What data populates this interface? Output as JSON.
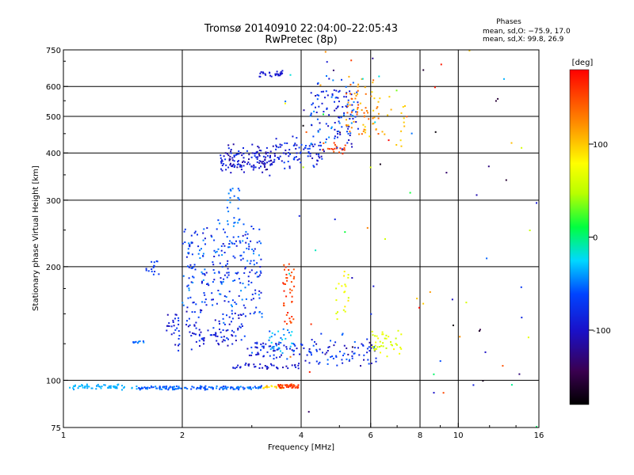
{
  "chart_data": {
    "type": "scatter",
    "title": "Tromsø 20140910 22:04:00–22:05:43",
    "subtitle": "RwPretec (8p)",
    "stats": {
      "heading": "Phases",
      "line_o": "mean, sd,O: −75.9, 17.0",
      "line_x": "mean, sd,X:  99.8, 26.9"
    },
    "xlabel": "Frequency [MHz]",
    "ylabel": "Stationary phase Virtual Height [km]",
    "x_scale": "log",
    "y_scale": "log",
    "xlim": [
      1,
      16
    ],
    "ylim": [
      75,
      750
    ],
    "x_ticks": [
      {
        "v": 1,
        "label": "1"
      },
      {
        "v": 2,
        "label": "2"
      },
      {
        "v": 4,
        "label": "4"
      },
      {
        "v": 6,
        "label": "6"
      },
      {
        "v": 8,
        "label": "8"
      },
      {
        "v": 10,
        "label": "10"
      },
      {
        "v": 16,
        "label": "16"
      }
    ],
    "x_grid": [
      2,
      4,
      6,
      8,
      10
    ],
    "y_ticks": [
      {
        "v": 75,
        "label": "75"
      },
      {
        "v": 100,
        "label": "100"
      },
      {
        "v": 200,
        "label": "200"
      },
      {
        "v": 300,
        "label": "300"
      },
      {
        "v": 400,
        "label": "400"
      },
      {
        "v": 500,
        "label": "500"
      },
      {
        "v": 600,
        "label": "600"
      },
      {
        "v": 750,
        "label": "750"
      }
    ],
    "y_grid": [
      100,
      200,
      300,
      400,
      500,
      600
    ],
    "grid": true,
    "colorbar": {
      "label": "[deg]",
      "range": [
        -180,
        180
      ],
      "ticks": [
        {
          "v": 100,
          "label": "100"
        },
        {
          "v": 0,
          "label": "0"
        },
        {
          "v": -100,
          "label": "-100"
        }
      ]
    },
    "clusters": [
      {
        "f0": 1.02,
        "f1": 1.55,
        "h0": 95,
        "h1": 97,
        "n": 60,
        "p0": -40,
        "p1": -30,
        "jh": 0.01
      },
      {
        "f0": 1.55,
        "f1": 3.2,
        "h0": 95,
        "h1": 96,
        "n": 140,
        "p0": -70,
        "p1": -40,
        "jh": 0.008
      },
      {
        "f0": 3.2,
        "f1": 3.6,
        "h0": 96,
        "h1": 96,
        "n": 20,
        "p0": 80,
        "p1": 120,
        "jh": 0.01
      },
      {
        "f0": 3.5,
        "f1": 3.95,
        "h0": 96,
        "h1": 97,
        "n": 40,
        "p0": 140,
        "p1": 170,
        "jh": 0.01
      },
      {
        "f0": 2.6,
        "f1": 4.0,
        "h0": 108,
        "h1": 110,
        "n": 40,
        "p0": -110,
        "p1": -80,
        "jh": 0.01
      },
      {
        "f0": 1.8,
        "f1": 2.9,
        "h0": 125,
        "h1": 150,
        "n": 120,
        "p0": -110,
        "p1": -60,
        "jh": 0.05
      },
      {
        "f0": 2.0,
        "f1": 3.2,
        "h0": 150,
        "h1": 250,
        "n": 250,
        "p0": -100,
        "p1": -40,
        "jh": 0.08
      },
      {
        "f0": 2.6,
        "f1": 2.8,
        "h0": 250,
        "h1": 320,
        "n": 25,
        "p0": -60,
        "p1": -40,
        "jh": 0.03
      },
      {
        "f0": 1.62,
        "f1": 1.75,
        "h0": 190,
        "h1": 210,
        "n": 15,
        "p0": -80,
        "p1": -60,
        "jh": 0.03
      },
      {
        "f0": 1.5,
        "f1": 1.6,
        "h0": 125,
        "h1": 128,
        "n": 10,
        "p0": -60,
        "p1": -40,
        "jh": 0.01
      },
      {
        "f0": 2.9,
        "f1": 4.1,
        "h0": 115,
        "h1": 125,
        "n": 60,
        "p0": -110,
        "p1": -50,
        "jh": 0.02
      },
      {
        "f0": 3.3,
        "f1": 3.85,
        "h0": 120,
        "h1": 135,
        "n": 30,
        "p0": -60,
        "p1": -20,
        "jh": 0.03
      },
      {
        "f0": 3.6,
        "f1": 3.85,
        "h0": 140,
        "h1": 200,
        "n": 40,
        "p0": 140,
        "p1": 170,
        "jh": 0.05
      },
      {
        "f0": 4.1,
        "f1": 6.2,
        "h0": 110,
        "h1": 130,
        "n": 80,
        "p0": -120,
        "p1": -50,
        "jh": 0.03
      },
      {
        "f0": 6.0,
        "f1": 7.2,
        "h0": 120,
        "h1": 135,
        "n": 40,
        "p0": 50,
        "p1": 80,
        "jh": 0.03
      },
      {
        "f0": 4.9,
        "f1": 5.3,
        "h0": 150,
        "h1": 190,
        "n": 20,
        "p0": 60,
        "p1": 90,
        "jh": 0.05
      },
      {
        "f0": 2.5,
        "f1": 3.4,
        "h0": 360,
        "h1": 410,
        "n": 140,
        "p0": -120,
        "p1": -70,
        "jh": 0.04
      },
      {
        "f0": 3.4,
        "f1": 4.6,
        "h0": 370,
        "h1": 430,
        "n": 80,
        "p0": -110,
        "p1": -60,
        "jh": 0.04
      },
      {
        "f0": 4.5,
        "f1": 5.2,
        "h0": 400,
        "h1": 420,
        "n": 20,
        "p0": 140,
        "p1": 165,
        "jh": 0.02
      },
      {
        "f0": 4.2,
        "f1": 5.6,
        "h0": 420,
        "h1": 620,
        "n": 120,
        "p0": -110,
        "p1": -40,
        "jh": 0.06
      },
      {
        "f0": 5.2,
        "f1": 6.3,
        "h0": 450,
        "h1": 620,
        "n": 60,
        "p0": 100,
        "p1": 150,
        "jh": 0.05
      },
      {
        "f0": 5.8,
        "f1": 7.5,
        "h0": 420,
        "h1": 560,
        "n": 25,
        "p0": 90,
        "p1": 110,
        "jh": 0.05
      },
      {
        "f0": 3.1,
        "f1": 3.6,
        "h0": 640,
        "h1": 655,
        "n": 30,
        "p0": -100,
        "p1": -90,
        "jh": 0.01
      },
      {
        "f0": 3.6,
        "f1": 16.0,
        "h0": 80,
        "h1": 700,
        "n": 90,
        "p0": -180,
        "p1": 180,
        "jh": 0.2
      }
    ]
  }
}
